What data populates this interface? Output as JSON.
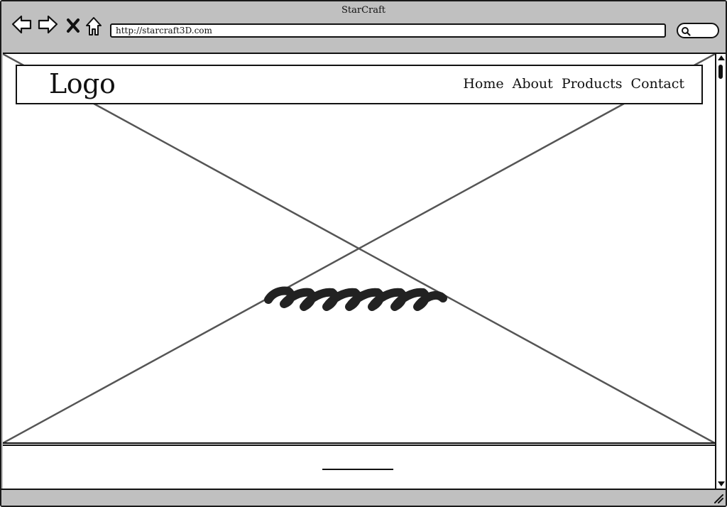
{
  "window": {
    "title": "StarCraft"
  },
  "toolbar": {
    "back_icon": "back-arrow-icon",
    "forward_icon": "forward-arrow-icon",
    "stop_icon": "close-icon",
    "home_icon": "home-icon",
    "search_icon": "search-icon"
  },
  "address_bar": {
    "url": "http://starcraft3D.com"
  },
  "site": {
    "logo": "Logo",
    "nav": [
      {
        "label": "Home"
      },
      {
        "label": "About"
      },
      {
        "label": "Products"
      },
      {
        "label": "Contact"
      }
    ]
  },
  "hero": {
    "type": "image-placeholder",
    "caption_icon": "scribble-text-icon"
  },
  "colors": {
    "chrome": "#c0c0c0",
    "ink": "#111111",
    "placeholder_line": "#555555"
  }
}
